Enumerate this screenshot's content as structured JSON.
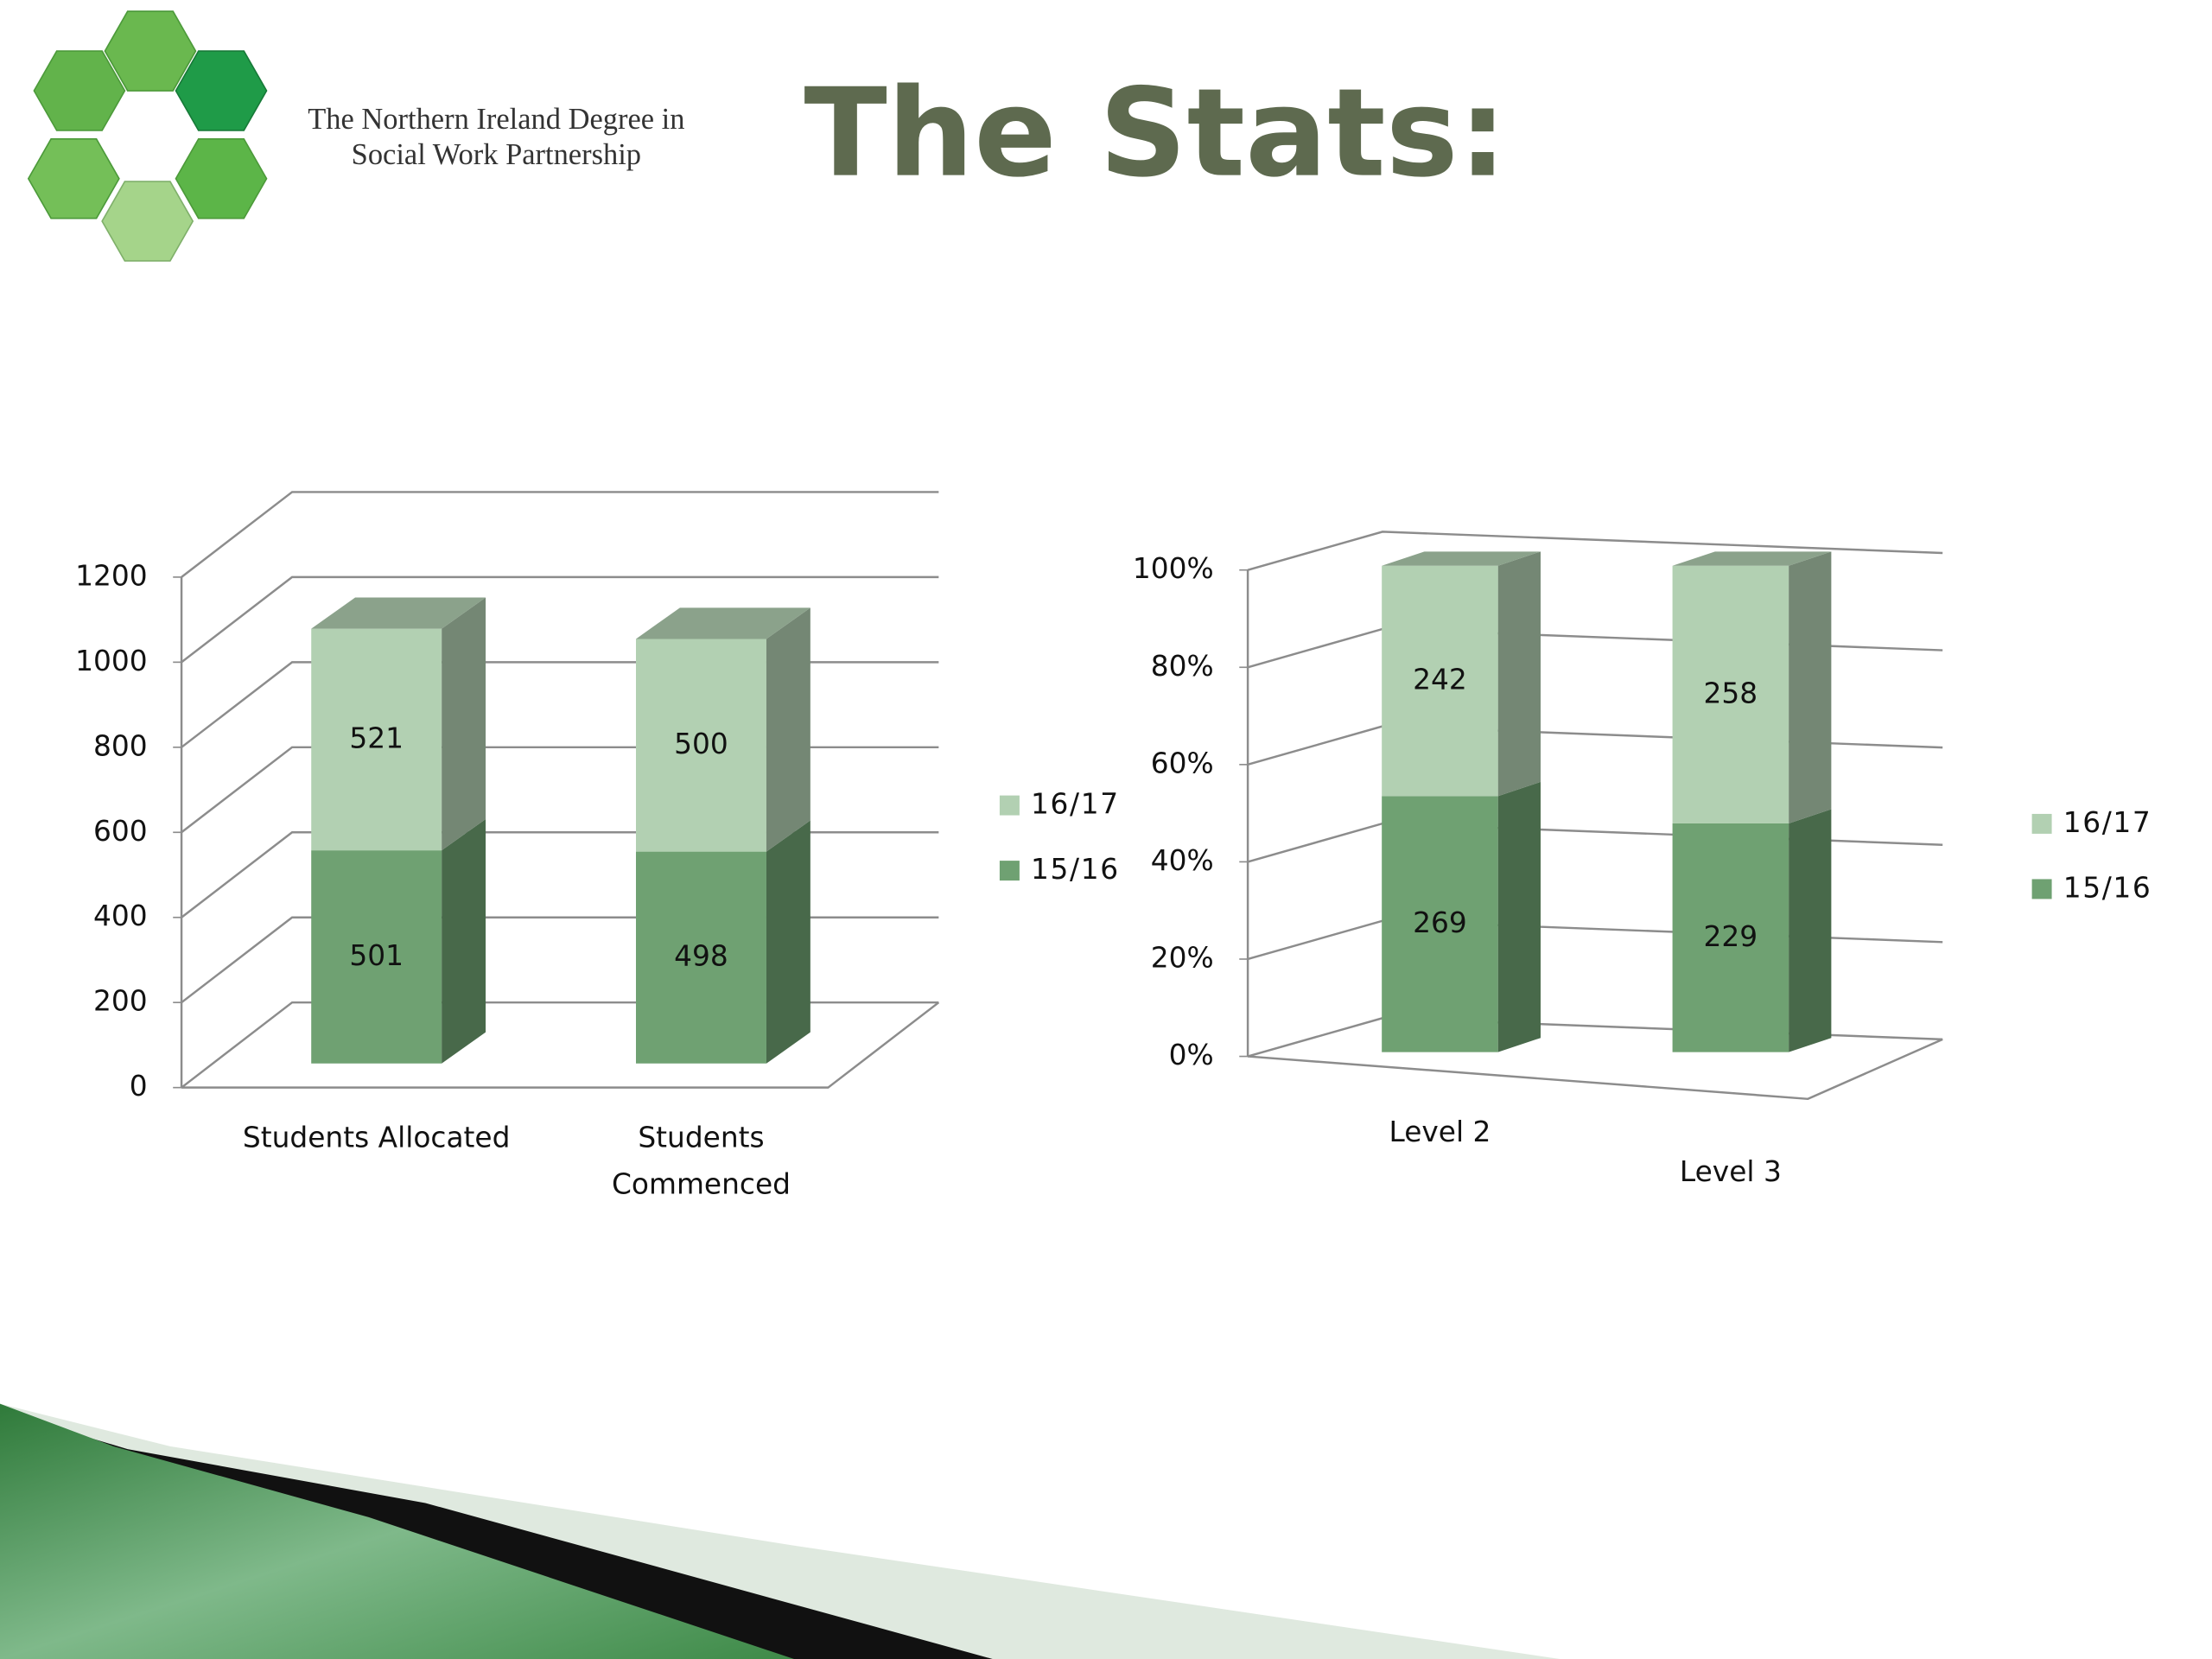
{
  "slide": {
    "title": "The Stats:",
    "logo_text": [
      "The Northern Ireland Degree in",
      "Social Work Partnership"
    ]
  },
  "chart_data": [
    {
      "type": "bar",
      "stacking": "normal",
      "categories": [
        "Students Allocated",
        "Students Commenced"
      ],
      "series": [
        {
          "name": "15/16",
          "color": "#6fa172",
          "values": [
            501,
            498
          ]
        },
        {
          "name": "16/17",
          "color": "#b2d0b2",
          "values": [
            521,
            500
          ]
        }
      ],
      "ylim": [
        0,
        1200
      ],
      "yticks": [
        0,
        200,
        400,
        600,
        800,
        1000,
        1200
      ],
      "grid": true,
      "legend": "right"
    },
    {
      "type": "bar",
      "stacking": "percent",
      "categories": [
        "Level 2",
        "Level 3"
      ],
      "series": [
        {
          "name": "15/16",
          "color": "#6fa172",
          "values": [
            269,
            229
          ]
        },
        {
          "name": "16/17",
          "color": "#b2d0b2",
          "values": [
            242,
            258
          ]
        }
      ],
      "ylim": [
        0,
        100
      ],
      "yticks": [
        {
          "value": 0,
          "label": "0%"
        },
        {
          "value": 20,
          "label": "20%"
        },
        {
          "value": 40,
          "label": "40%"
        },
        {
          "value": 60,
          "label": "60%"
        },
        {
          "value": 80,
          "label": "80%"
        },
        {
          "value": 100,
          "label": "100%"
        }
      ],
      "grid": true,
      "legend": "right"
    }
  ]
}
